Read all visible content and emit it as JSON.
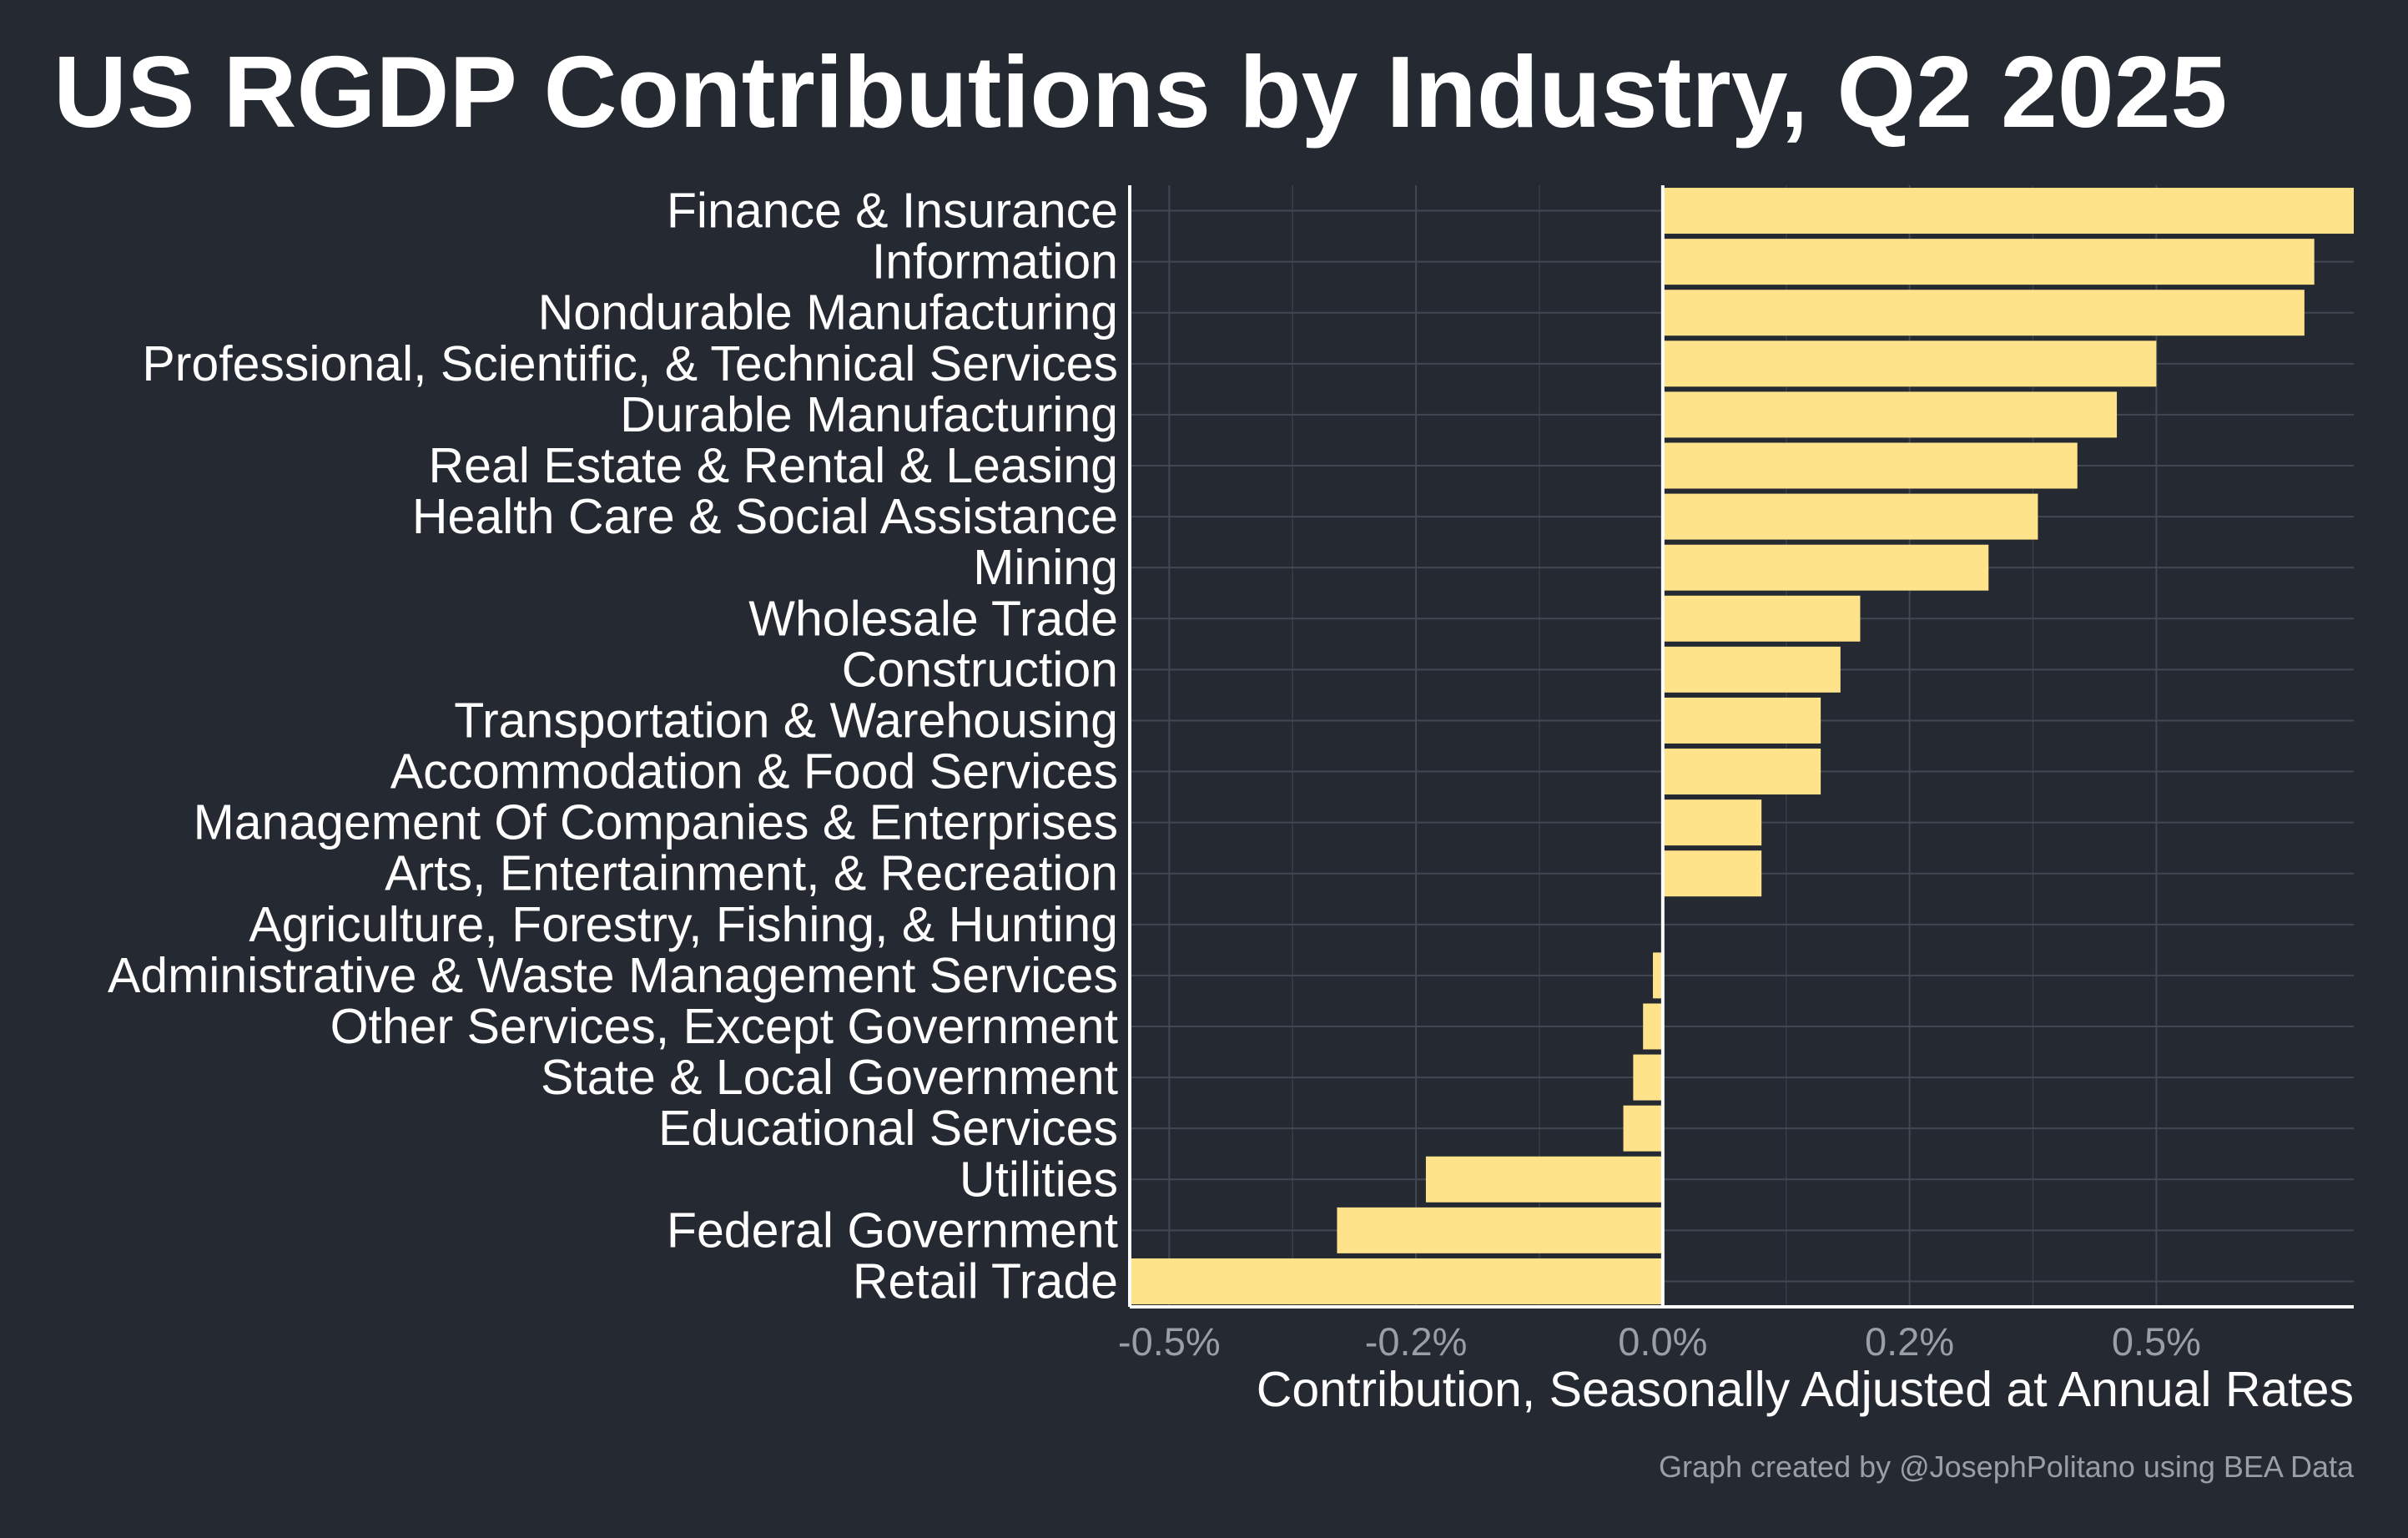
{
  "chart_data": {
    "type": "bar",
    "orientation": "horizontal",
    "title": "US RGDP Contributions by Industry, Q2 2025",
    "xlabel": "Contribution, Seasonally Adjusted at Annual Rates",
    "ylabel": "",
    "caption": "Graph created by @JosephPolitano using BEA Data",
    "xlim": [
      -0.54,
      0.7
    ],
    "x_ticks": [
      -0.5,
      -0.25,
      0,
      0.25,
      0.5
    ],
    "x_tick_labels": [
      "-0.5%",
      "-0.2%",
      "0.0%",
      "0.2%",
      "0.5%"
    ],
    "grid": true,
    "bar_color": "#ffe38a",
    "categories": [
      "Finance & Insurance",
      "Information",
      "Nondurable Manufacturing",
      "Professional, Scientific, & Technical Services",
      "Durable Manufacturing",
      "Real Estate & Rental & Leasing",
      "Health Care & Social Assistance",
      "Mining",
      "Wholesale Trade",
      "Construction",
      "Transportation & Warehousing",
      "Accommodation & Food Services",
      "Management Of Companies & Enterprises",
      "Arts, Entertainment, & Recreation",
      "Agriculture, Forestry, Fishing, & Hunting",
      "Administrative & Waste Management Services",
      "Other Services, Except Government",
      "State & Local Government",
      "Educational Services",
      "Utilities",
      "Federal Government",
      "Retail Trade"
    ],
    "values": [
      0.7,
      0.66,
      0.65,
      0.5,
      0.46,
      0.42,
      0.38,
      0.33,
      0.2,
      0.18,
      0.16,
      0.16,
      0.1,
      0.1,
      0.0,
      -0.01,
      -0.02,
      -0.03,
      -0.04,
      -0.24,
      -0.33,
      -0.54
    ]
  }
}
